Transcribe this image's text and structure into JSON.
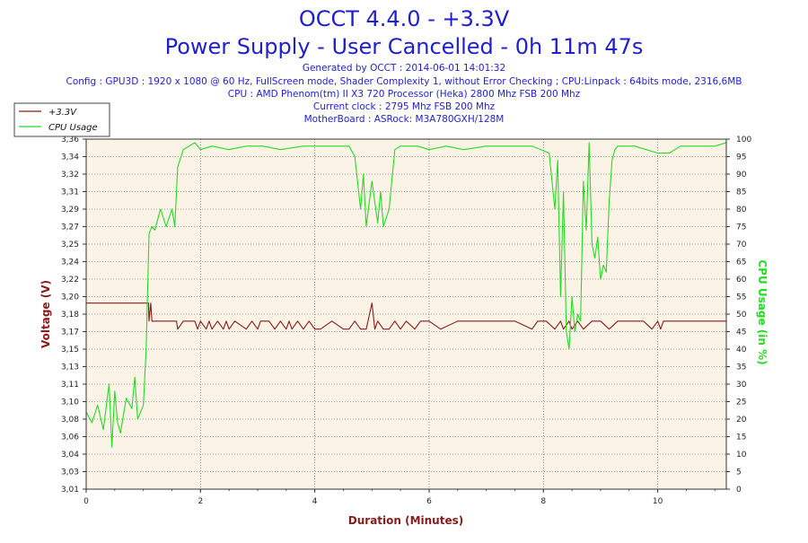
{
  "header": {
    "title": "OCCT 4.4.0 - +3.3V",
    "subtitle": "Power Supply - User Cancelled - 0h 11m 47s",
    "info_lines": [
      "Generated by OCCT : 2014-06-01 14:01:32",
      "Config : GPU3D : 1920 x 1080 @ 60 Hz, FullScreen mode, Shader Complexity 1, without Error Checking ; CPU:Linpack : 64bits mode, 2316,6MB",
      "CPU : AMD Phenom(tm) II X3 720 Processor (Heka) 2800 Mhz FSB 200 Mhz",
      "Current clock : 2795 Mhz FSB 200 Mhz",
      "MotherBoard : ASRock: M3A780GXH/128M"
    ]
  },
  "colors": {
    "voltage": "#8b1a1a",
    "cpu": "#22dd22",
    "plot_bg": "#fbf3e6",
    "title": "#1f1fd0"
  },
  "chart_data": {
    "type": "line",
    "xlabel": "Duration (Minutes)",
    "ylabel_left": "Voltage (V)",
    "ylabel_right": "CPU Usage (in %)",
    "xlim": [
      0,
      11.2
    ],
    "x_ticks": [
      "0",
      "2",
      "4",
      "6",
      "8",
      "10"
    ],
    "y_left_lim": [
      3.01,
      3.36
    ],
    "y_left_ticks": [
      "3,01",
      "3,03",
      "3,04",
      "3,06",
      "3,08",
      "3,10",
      "3,11",
      "3,13",
      "3,15",
      "3,17",
      "3,18",
      "3,20",
      "3,22",
      "3,24",
      "3,25",
      "3,27",
      "3,29",
      "3,31",
      "3,32",
      "3,34",
      "3,36"
    ],
    "y_right_lim": [
      0,
      100
    ],
    "y_right_ticks": [
      "0",
      "5",
      "10",
      "15",
      "20",
      "25",
      "30",
      "35",
      "40",
      "45",
      "50",
      "55",
      "60",
      "65",
      "70",
      "75",
      "80",
      "85",
      "90",
      "95",
      "100"
    ],
    "grid": true,
    "legend_position": "top-left",
    "series": [
      {
        "name": "+3.3V",
        "axis": "left",
        "x": [
          0,
          1.09,
          1.1,
          1.13,
          1.15,
          1.2,
          1.3,
          1.5,
          1.58,
          1.6,
          1.7,
          1.9,
          1.95,
          2.0,
          2.1,
          2.15,
          2.2,
          2.3,
          2.4,
          2.45,
          2.5,
          2.6,
          2.8,
          2.9,
          3.0,
          3.05,
          3.2,
          3.3,
          3.4,
          3.5,
          3.55,
          3.6,
          3.7,
          3.8,
          3.9,
          4.0,
          4.1,
          4.3,
          4.5,
          4.6,
          4.7,
          4.8,
          4.9,
          5.0,
          5.05,
          5.1,
          5.2,
          5.3,
          5.4,
          5.5,
          5.6,
          5.75,
          5.85,
          6.0,
          6.2,
          6.5,
          6.8,
          7.1,
          7.5,
          7.8,
          7.9,
          8.05,
          8.2,
          8.3,
          8.35,
          8.45,
          8.5,
          8.6,
          8.7,
          8.85,
          9.0,
          9.15,
          9.3,
          9.5,
          9.75,
          9.9,
          10.0,
          10.05,
          10.1,
          10.2,
          11.2
        ],
        "y": [
          3.196,
          3.196,
          3.178,
          3.196,
          3.178,
          3.178,
          3.178,
          3.178,
          3.178,
          3.17,
          3.178,
          3.178,
          3.17,
          3.178,
          3.17,
          3.178,
          3.17,
          3.178,
          3.17,
          3.178,
          3.17,
          3.178,
          3.17,
          3.178,
          3.17,
          3.178,
          3.178,
          3.17,
          3.178,
          3.17,
          3.178,
          3.17,
          3.178,
          3.17,
          3.178,
          3.17,
          3.17,
          3.178,
          3.17,
          3.17,
          3.178,
          3.17,
          3.17,
          3.196,
          3.17,
          3.178,
          3.17,
          3.17,
          3.178,
          3.17,
          3.178,
          3.17,
          3.178,
          3.178,
          3.17,
          3.178,
          3.178,
          3.178,
          3.178,
          3.17,
          3.178,
          3.178,
          3.17,
          3.178,
          3.17,
          3.178,
          3.17,
          3.178,
          3.17,
          3.178,
          3.178,
          3.17,
          3.178,
          3.178,
          3.178,
          3.17,
          3.178,
          3.17,
          3.178,
          3.178,
          3.178
        ]
      },
      {
        "name": "CPU Usage",
        "axis": "right",
        "x": [
          0,
          0.1,
          0.2,
          0.3,
          0.4,
          0.45,
          0.5,
          0.55,
          0.6,
          0.7,
          0.8,
          0.85,
          0.9,
          1.0,
          1.05,
          1.1,
          1.15,
          1.2,
          1.3,
          1.4,
          1.5,
          1.55,
          1.6,
          1.7,
          1.8,
          1.9,
          2.0,
          2.2,
          2.5,
          2.8,
          3.1,
          3.4,
          3.8,
          4.2,
          4.6,
          4.7,
          4.8,
          4.85,
          4.9,
          5.0,
          5.1,
          5.15,
          5.2,
          5.3,
          5.4,
          5.5,
          5.6,
          5.7,
          5.8,
          6.0,
          6.3,
          6.6,
          7.0,
          7.4,
          7.8,
          8.1,
          8.2,
          8.25,
          8.3,
          8.35,
          8.4,
          8.45,
          8.5,
          8.55,
          8.6,
          8.65,
          8.7,
          8.75,
          8.8,
          8.85,
          8.9,
          8.95,
          9.0,
          9.05,
          9.1,
          9.15,
          9.2,
          9.25,
          9.3,
          9.4,
          9.6,
          9.8,
          10.0,
          10.2,
          10.4,
          10.6,
          10.8,
          11.0,
          11.2
        ],
        "y": [
          22,
          19,
          24,
          17,
          30,
          12,
          28,
          19,
          16,
          26,
          23,
          32,
          20,
          24,
          40,
          73,
          75,
          74,
          80,
          75,
          80,
          75,
          92,
          97,
          98,
          99,
          97,
          98,
          97,
          98,
          98,
          97,
          98,
          98,
          98,
          95,
          80,
          90,
          75,
          88,
          76,
          85,
          75,
          80,
          97,
          98,
          98,
          98,
          98,
          97,
          98,
          97,
          98,
          98,
          98,
          96,
          80,
          94,
          55,
          85,
          45,
          40,
          55,
          45,
          50,
          48,
          88,
          74,
          99,
          70,
          66,
          72,
          60,
          64,
          62,
          82,
          94,
          97,
          98,
          98,
          98,
          97,
          96,
          96,
          98,
          98,
          98,
          98,
          99
        ]
      }
    ]
  }
}
